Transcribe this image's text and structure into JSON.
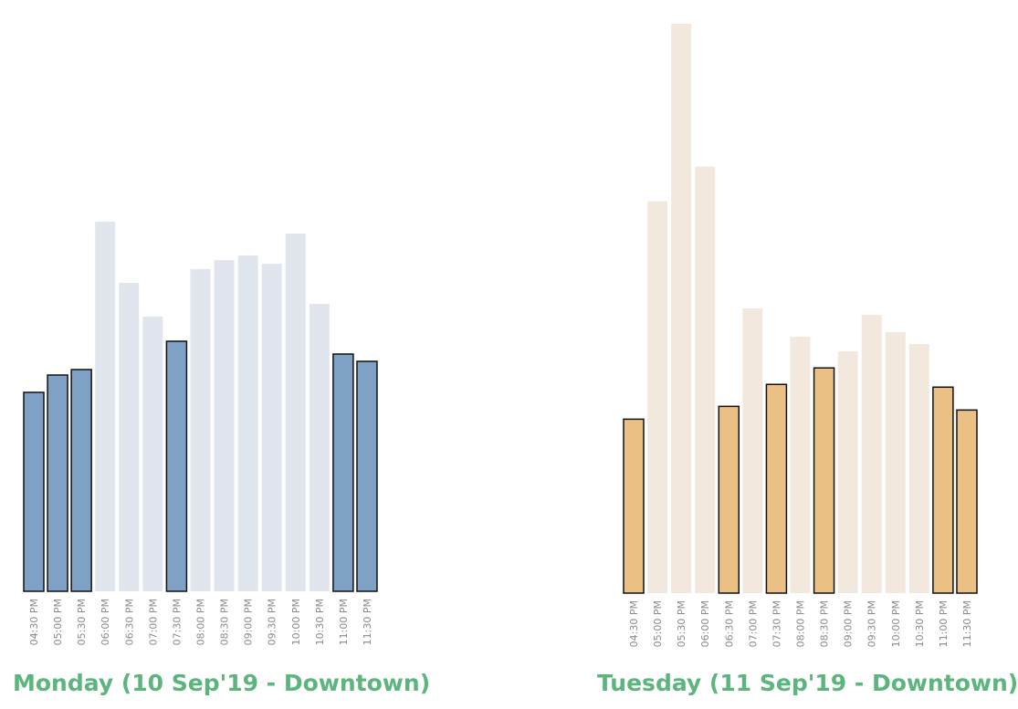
{
  "chart_data": [
    {
      "type": "bar",
      "title": "Monday (10 Sep'19 - Downtown)",
      "categories": [
        "04:30 PM",
        "05:00 PM",
        "05:30 PM",
        "06:00 PM",
        "06:30 PM",
        "07:00 PM",
        "07:30 PM",
        "08:00 PM",
        "08:30 PM",
        "09:00 PM",
        "09:30 PM",
        "10:00 PM",
        "10:30 PM",
        "11:00 PM",
        "11:30 PM"
      ],
      "values": [
        218,
        237,
        243,
        405,
        338,
        301,
        274,
        353,
        363,
        368,
        359,
        392,
        315,
        260,
        252
      ],
      "highlighted": [
        true,
        true,
        true,
        false,
        false,
        false,
        true,
        false,
        false,
        false,
        false,
        false,
        false,
        true,
        true
      ],
      "ylim": [
        0,
        620
      ],
      "colors": {
        "highlight": "#7fa1c5",
        "muted": "#e1e6ee",
        "stroke": "#111111"
      }
    },
    {
      "type": "bar",
      "title": "Tuesday (11 Sep'19 - Downtown)",
      "categories": [
        "04:30 PM",
        "05:00 PM",
        "05:30 PM",
        "06:00 PM",
        "06:30 PM",
        "07:00 PM",
        "07:30 PM",
        "08:00 PM",
        "08:30 PM",
        "09:00 PM",
        "09:30 PM",
        "10:00 PM",
        "10:30 PM",
        "11:00 PM",
        "11:30 PM"
      ],
      "values": [
        190,
        428,
        622,
        466,
        204,
        311,
        228,
        280,
        246,
        264,
        304,
        285,
        272,
        225,
        200
      ],
      "highlighted": [
        true,
        false,
        false,
        false,
        true,
        false,
        true,
        false,
        true,
        false,
        false,
        false,
        false,
        true,
        true
      ],
      "ylim": [
        0,
        620
      ],
      "colors": {
        "highlight": "#ebc084",
        "muted": "#f3e8de",
        "stroke": "#111111"
      }
    }
  ]
}
